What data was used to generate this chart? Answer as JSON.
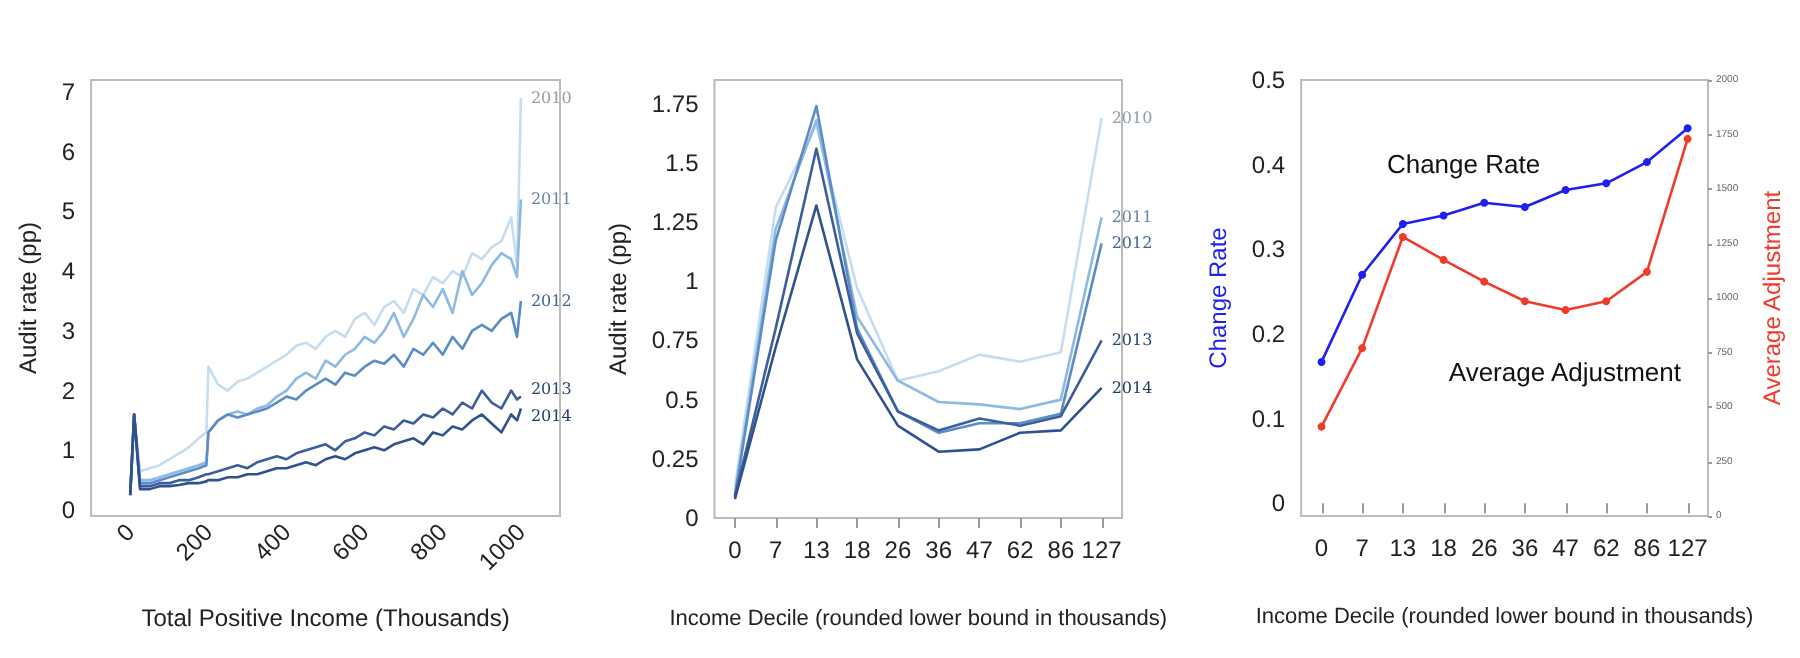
{
  "chart_data": [
    {
      "type": "line",
      "xlabel": "Total Positive Income (Thousands)",
      "ylabel": "Audit rate (pp)",
      "x": [
        0,
        10,
        25,
        50,
        75,
        100,
        125,
        150,
        175,
        195,
        200,
        225,
        250,
        275,
        300,
        325,
        350,
        375,
        400,
        425,
        450,
        475,
        500,
        525,
        550,
        575,
        600,
        625,
        650,
        675,
        700,
        725,
        750,
        775,
        800,
        825,
        850,
        875,
        900,
        925,
        950,
        975,
        990,
        1000
      ],
      "xlim": [
        -100,
        1100
      ],
      "xticks": [
        0,
        200,
        400,
        600,
        800,
        1000
      ],
      "ylim": [
        -0.1,
        7.2
      ],
      "yticks": [
        0,
        1,
        2,
        3,
        4,
        5,
        6,
        7
      ],
      "series": [
        {
          "name": "2010",
          "color": "#c6dcf0",
          "values": [
            0.25,
            1.6,
            0.65,
            0.7,
            0.75,
            0.85,
            0.95,
            1.05,
            1.2,
            1.3,
            2.4,
            2.1,
            2.0,
            2.15,
            2.2,
            2.3,
            2.4,
            2.5,
            2.6,
            2.75,
            2.8,
            2.7,
            2.9,
            3.0,
            2.9,
            3.2,
            3.3,
            3.1,
            3.4,
            3.5,
            3.3,
            3.7,
            3.6,
            3.9,
            3.8,
            4.0,
            3.9,
            4.3,
            4.2,
            4.4,
            4.5,
            4.9,
            4.1,
            6.9
          ]
        },
        {
          "name": "2011",
          "color": "#8dbae2",
          "values": [
            0.25,
            1.6,
            0.5,
            0.5,
            0.55,
            0.6,
            0.65,
            0.7,
            0.75,
            0.8,
            1.3,
            1.5,
            1.6,
            1.65,
            1.6,
            1.7,
            1.75,
            1.9,
            2.0,
            2.2,
            2.3,
            2.2,
            2.5,
            2.4,
            2.6,
            2.7,
            2.9,
            2.8,
            3.0,
            3.3,
            2.9,
            3.2,
            3.6,
            3.4,
            3.7,
            3.3,
            4.0,
            3.6,
            3.8,
            4.1,
            4.3,
            4.2,
            3.9,
            5.2
          ]
        },
        {
          "name": "2012",
          "color": "#5b8cc6",
          "values": [
            0.25,
            1.6,
            0.45,
            0.45,
            0.5,
            0.55,
            0.6,
            0.65,
            0.7,
            0.75,
            1.3,
            1.5,
            1.6,
            1.55,
            1.6,
            1.65,
            1.7,
            1.8,
            1.9,
            1.85,
            2.0,
            2.1,
            2.2,
            2.1,
            2.3,
            2.25,
            2.4,
            2.5,
            2.45,
            2.6,
            2.4,
            2.7,
            2.6,
            2.8,
            2.6,
            2.9,
            2.7,
            3.0,
            3.1,
            3.0,
            3.2,
            3.3,
            2.9,
            3.5
          ]
        },
        {
          "name": "2013",
          "color": "#3c5e9c",
          "values": [
            0.25,
            1.6,
            0.4,
            0.4,
            0.45,
            0.45,
            0.5,
            0.5,
            0.55,
            0.6,
            0.6,
            0.65,
            0.7,
            0.75,
            0.7,
            0.8,
            0.85,
            0.9,
            0.85,
            0.95,
            1.0,
            1.05,
            1.1,
            1.0,
            1.15,
            1.2,
            1.3,
            1.25,
            1.4,
            1.35,
            1.5,
            1.45,
            1.6,
            1.55,
            1.7,
            1.6,
            1.8,
            1.7,
            2.0,
            1.8,
            1.7,
            2.0,
            1.85,
            1.9
          ]
        },
        {
          "name": "2014",
          "color": "#2f528e",
          "values": [
            0.25,
            1.6,
            0.35,
            0.35,
            0.4,
            0.4,
            0.42,
            0.45,
            0.45,
            0.48,
            0.5,
            0.5,
            0.55,
            0.55,
            0.6,
            0.6,
            0.65,
            0.7,
            0.7,
            0.75,
            0.8,
            0.75,
            0.85,
            0.9,
            0.85,
            0.95,
            1.0,
            1.05,
            1.0,
            1.1,
            1.15,
            1.2,
            1.1,
            1.3,
            1.25,
            1.4,
            1.35,
            1.5,
            1.6,
            1.45,
            1.3,
            1.6,
            1.5,
            1.7
          ]
        }
      ]
    },
    {
      "type": "line",
      "xlabel": "Income Decile (rounded lower bound in thousands)",
      "ylabel": "Audit rate (pp)",
      "categories": [
        "0",
        "7",
        "13",
        "18",
        "26",
        "36",
        "47",
        "62",
        "86",
        "127"
      ],
      "ylim": [
        0,
        1.85
      ],
      "yticks": [
        0,
        0.25,
        0.5,
        0.75,
        1,
        1.25,
        1.5,
        1.75
      ],
      "series": [
        {
          "name": "2010",
          "color": "#c6dcf0",
          "values": [
            0.13,
            1.31,
            1.66,
            0.97,
            0.58,
            0.62,
            0.69,
            0.66,
            0.7,
            1.69
          ]
        },
        {
          "name": "2011",
          "color": "#8dbae2",
          "values": [
            0.1,
            1.22,
            1.68,
            0.85,
            0.58,
            0.49,
            0.48,
            0.46,
            0.5,
            1.27
          ]
        },
        {
          "name": "2012",
          "color": "#5b8cc6",
          "values": [
            0.09,
            1.17,
            1.74,
            0.8,
            0.45,
            0.36,
            0.4,
            0.4,
            0.44,
            1.16
          ]
        },
        {
          "name": "2013",
          "color": "#3c5e9c",
          "values": [
            0.09,
            0.8,
            1.56,
            0.78,
            0.45,
            0.37,
            0.42,
            0.39,
            0.43,
            0.75
          ]
        },
        {
          "name": "2014",
          "color": "#2f528e",
          "values": [
            0.08,
            0.72,
            1.32,
            0.67,
            0.39,
            0.28,
            0.29,
            0.36,
            0.37,
            0.55
          ]
        }
      ]
    },
    {
      "type": "line",
      "xlabel": "Income Decile (rounded lower bound in thousands)",
      "ylabel": "Change Rate",
      "y2label": "Average Adjustment",
      "marker": "circle",
      "categories": [
        "0",
        "7",
        "13",
        "18",
        "26",
        "36",
        "47",
        "62",
        "86",
        "127"
      ],
      "ylim": [
        -0.015,
        0.5
      ],
      "yticks": [
        0,
        0.1,
        0.2,
        0.3,
        0.4,
        0.5
      ],
      "y2lim": [
        0,
        2000
      ],
      "y2ticks": [
        0,
        250,
        500,
        750,
        1000,
        1250,
        1500,
        1750,
        2000
      ],
      "series": [
        {
          "name": "Change Rate",
          "color": "#1f1fef",
          "values": [
            0.167,
            0.27,
            0.33,
            0.34,
            0.355,
            0.35,
            0.37,
            0.378,
            0.403,
            0.443
          ]
        },
        {
          "name": "Average Adjustment",
          "color": "#ef3b2c",
          "axis": "y2",
          "values": [
            410,
            770,
            1280,
            1175,
            1075,
            985,
            945,
            985,
            1120,
            1730
          ]
        }
      ]
    }
  ]
}
